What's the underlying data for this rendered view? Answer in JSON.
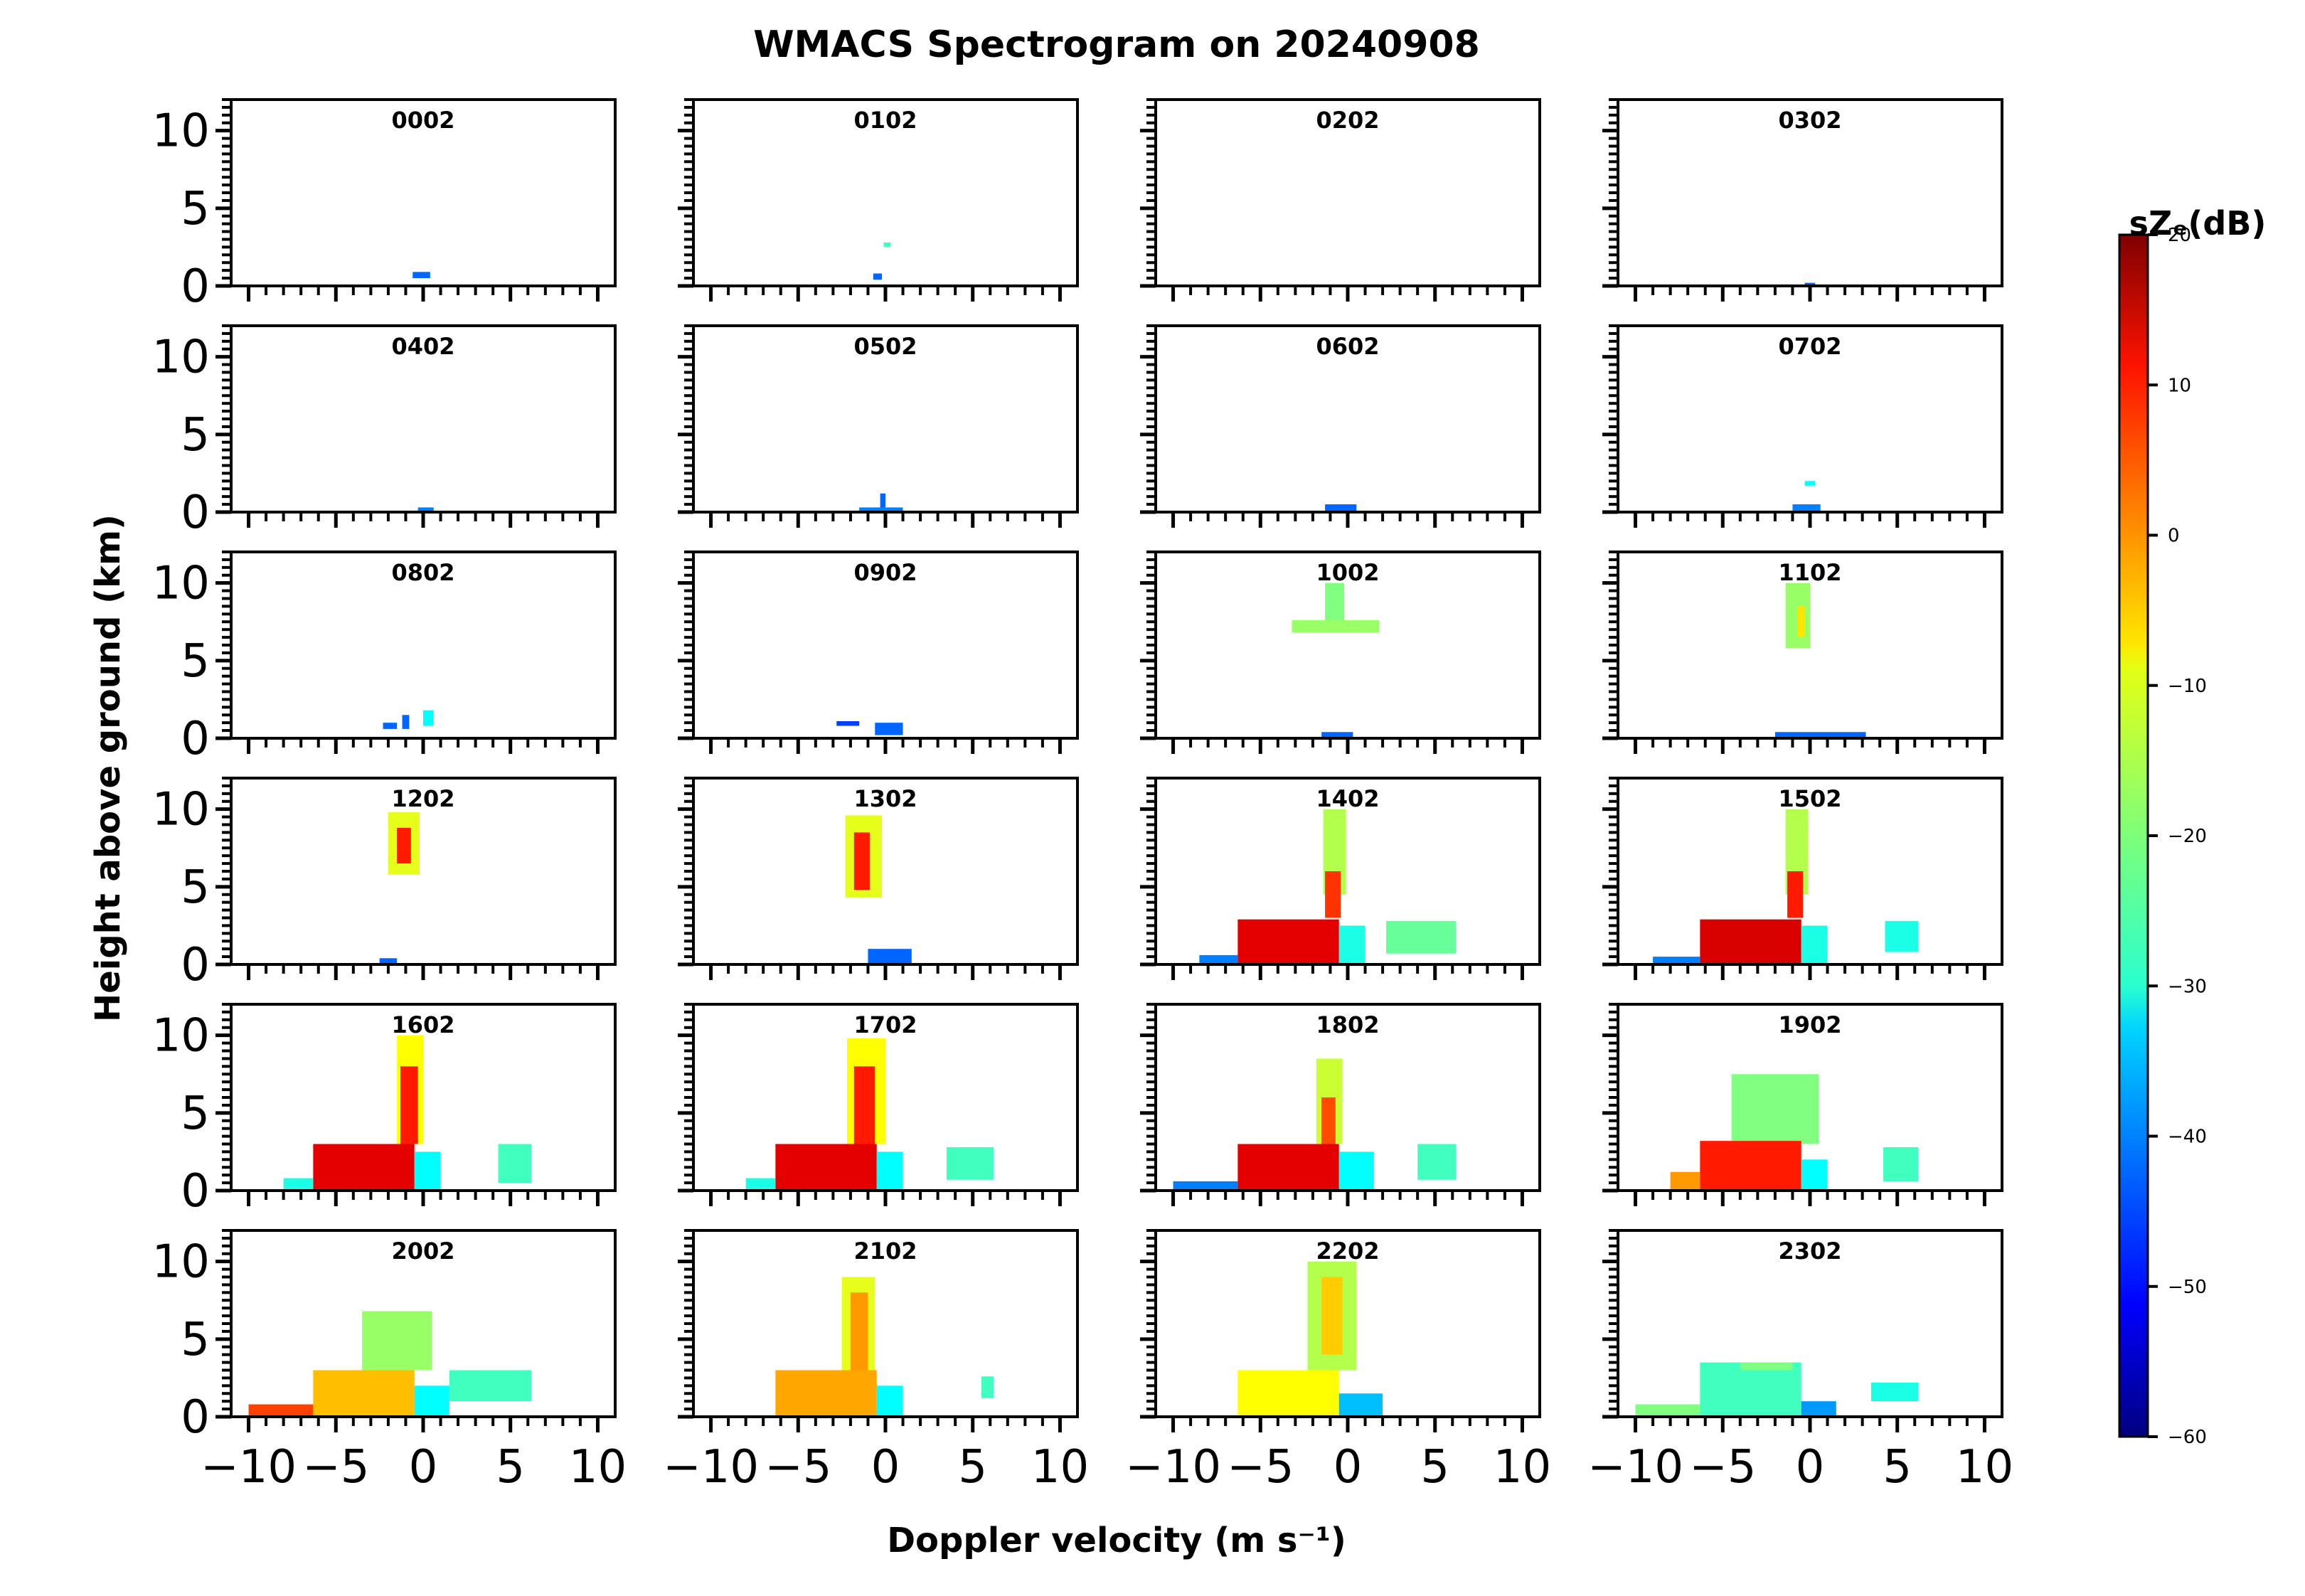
{
  "chart_data": {
    "type": "heatmap",
    "title": "WMACS Spectrogram on 20240908",
    "xlabel": "Doppler velocity (m s⁻¹)",
    "ylabel": "Height above ground (km)",
    "xlim": [
      -11,
      11
    ],
    "ylim": [
      0,
      12
    ],
    "xticks": [
      -10,
      -5,
      0,
      5,
      10
    ],
    "xtick_labels": [
      "−10",
      "−5",
      "0",
      "5",
      "10"
    ],
    "yticks": [
      0,
      5,
      10
    ],
    "ytick_labels": [
      "0",
      "5",
      "10"
    ],
    "grid": false,
    "colorbar": {
      "label": "sZₑ(dB)",
      "range": [
        -60,
        20
      ],
      "ticks": [
        20,
        10,
        0,
        -10,
        -20,
        -30,
        -40,
        -50,
        -60
      ],
      "tick_labels": [
        "20",
        "10",
        "0",
        "−10",
        "−20",
        "−30",
        "−40",
        "−50",
        "−60"
      ],
      "colormap": "jet"
    },
    "panels": [
      {
        "label": "0002",
        "blobs": [
          {
            "x": [
              -0.6,
              0.4
            ],
            "y": [
              0.5,
              0.9
            ],
            "db": -42
          }
        ]
      },
      {
        "label": "0102",
        "blobs": [
          {
            "x": [
              -0.7,
              -0.2
            ],
            "y": [
              0.4,
              0.8
            ],
            "db": -42
          },
          {
            "x": [
              -0.1,
              0.3
            ],
            "y": [
              2.5,
              2.8
            ],
            "db": -25
          }
        ]
      },
      {
        "label": "0202",
        "blobs": []
      },
      {
        "label": "0302",
        "blobs": [
          {
            "x": [
              -0.3,
              0.3
            ],
            "y": [
              0.0,
              0.2
            ],
            "db": -42
          }
        ]
      },
      {
        "label": "0402",
        "blobs": [
          {
            "x": [
              -0.3,
              0.6
            ],
            "y": [
              0.0,
              0.3
            ],
            "db": -40
          }
        ]
      },
      {
        "label": "0502",
        "blobs": [
          {
            "x": [
              -1.5,
              1.0
            ],
            "y": [
              0.0,
              0.3
            ],
            "db": -40
          },
          {
            "x": [
              -0.3,
              0.0
            ],
            "y": [
              0.3,
              1.2
            ],
            "db": -42
          }
        ]
      },
      {
        "label": "0602",
        "blobs": [
          {
            "x": [
              -1.3,
              0.5
            ],
            "y": [
              0.0,
              0.5
            ],
            "db": -42
          }
        ]
      },
      {
        "label": "0702",
        "blobs": [
          {
            "x": [
              -1.0,
              0.6
            ],
            "y": [
              0.0,
              0.5
            ],
            "db": -40
          },
          {
            "x": [
              -0.3,
              0.3
            ],
            "y": [
              1.7,
              2.0
            ],
            "db": -30
          }
        ]
      },
      {
        "label": "0802",
        "blobs": [
          {
            "x": [
              -2.3,
              -1.5
            ],
            "y": [
              0.6,
              1.0
            ],
            "db": -42
          },
          {
            "x": [
              -1.2,
              -0.8
            ],
            "y": [
              0.6,
              1.5
            ],
            "db": -42
          },
          {
            "x": [
              0.0,
              0.6
            ],
            "y": [
              0.8,
              1.8
            ],
            "db": -30
          }
        ]
      },
      {
        "label": "0902",
        "blobs": [
          {
            "x": [
              -2.8,
              -1.5
            ],
            "y": [
              0.8,
              1.1
            ],
            "db": -45
          },
          {
            "x": [
              -0.6,
              1.0
            ],
            "y": [
              0.2,
              1.0
            ],
            "db": -42
          }
        ]
      },
      {
        "label": "1002",
        "blobs": [
          {
            "x": [
              -1.3,
              -0.2
            ],
            "y": [
              7.5,
              10.0
            ],
            "db": -20
          },
          {
            "x": [
              -3.2,
              1.8
            ],
            "y": [
              6.8,
              7.6
            ],
            "db": -18
          },
          {
            "x": [
              -1.5,
              0.3
            ],
            "y": [
              0.0,
              0.4
            ],
            "db": -42
          }
        ]
      },
      {
        "label": "1102",
        "blobs": [
          {
            "x": [
              -1.4,
              0.0
            ],
            "y": [
              5.8,
              10.0
            ],
            "db": -18
          },
          {
            "x": [
              -0.7,
              -0.3
            ],
            "y": [
              6.5,
              8.5
            ],
            "db": -8
          },
          {
            "x": [
              -2.0,
              3.2
            ],
            "y": [
              0.0,
              0.4
            ],
            "db": -42
          }
        ]
      },
      {
        "label": "1202",
        "blobs": [
          {
            "x": [
              -2.0,
              -0.2
            ],
            "y": [
              5.8,
              9.8
            ],
            "db": -12
          },
          {
            "x": [
              -1.5,
              -0.7
            ],
            "y": [
              6.5,
              8.8
            ],
            "db": 8
          },
          {
            "x": [
              -2.5,
              -1.5
            ],
            "y": [
              0.0,
              0.4
            ],
            "db": -42
          }
        ]
      },
      {
        "label": "1302",
        "blobs": [
          {
            "x": [
              -2.3,
              -0.2
            ],
            "y": [
              4.3,
              9.6
            ],
            "db": -12
          },
          {
            "x": [
              -1.8,
              -0.9
            ],
            "y": [
              4.8,
              8.5
            ],
            "db": 8
          },
          {
            "x": [
              -1.0,
              1.5
            ],
            "y": [
              0.0,
              1.0
            ],
            "db": -42
          }
        ]
      },
      {
        "label": "1402",
        "blobs": [
          {
            "x": [
              -1.4,
              -0.1
            ],
            "y": [
              4.5,
              10.0
            ],
            "db": -16
          },
          {
            "x": [
              -1.3,
              -0.4
            ],
            "y": [
              3.0,
              6.0
            ],
            "db": 6
          },
          {
            "x": [
              -6.3,
              -0.5
            ],
            "y": [
              0.0,
              2.9
            ],
            "db": 12
          },
          {
            "x": [
              -0.5,
              1.0
            ],
            "y": [
              0.0,
              2.5
            ],
            "db": -28
          },
          {
            "x": [
              -8.5,
              -6.3
            ],
            "y": [
              0.0,
              0.6
            ],
            "db": -40
          },
          {
            "x": [
              2.2,
              6.2
            ],
            "y": [
              0.7,
              2.8
            ],
            "db": -22
          }
        ]
      },
      {
        "label": "1502",
        "blobs": [
          {
            "x": [
              -1.4,
              -0.1
            ],
            "y": [
              4.5,
              10.0
            ],
            "db": -16
          },
          {
            "x": [
              -1.3,
              -0.4
            ],
            "y": [
              3.0,
              6.0
            ],
            "db": 8
          },
          {
            "x": [
              -6.3,
              -0.5
            ],
            "y": [
              0.0,
              2.9
            ],
            "db": 13
          },
          {
            "x": [
              -0.5,
              1.0
            ],
            "y": [
              0.0,
              2.5
            ],
            "db": -28
          },
          {
            "x": [
              -9.0,
              -6.3
            ],
            "y": [
              0.0,
              0.5
            ],
            "db": -40
          },
          {
            "x": [
              4.3,
              6.2
            ],
            "y": [
              0.8,
              2.8
            ],
            "db": -28
          }
        ]
      },
      {
        "label": "1602",
        "blobs": [
          {
            "x": [
              -1.5,
              0.0
            ],
            "y": [
              3.0,
              10.0
            ],
            "db": -10
          },
          {
            "x": [
              -1.3,
              -0.3
            ],
            "y": [
              3.0,
              8.0
            ],
            "db": 8
          },
          {
            "x": [
              -6.3,
              -0.5
            ],
            "y": [
              0.0,
              3.0
            ],
            "db": 12
          },
          {
            "x": [
              -0.5,
              1.0
            ],
            "y": [
              0.0,
              2.5
            ],
            "db": -30
          },
          {
            "x": [
              -8.0,
              -6.3
            ],
            "y": [
              0.0,
              0.8
            ],
            "db": -28
          },
          {
            "x": [
              4.3,
              6.2
            ],
            "y": [
              0.5,
              3.0
            ],
            "db": -25
          }
        ]
      },
      {
        "label": "1702",
        "blobs": [
          {
            "x": [
              -2.2,
              0.0
            ],
            "y": [
              3.0,
              9.8
            ],
            "db": -10
          },
          {
            "x": [
              -1.8,
              -0.6
            ],
            "y": [
              3.0,
              8.0
            ],
            "db": 8
          },
          {
            "x": [
              -6.3,
              -0.5
            ],
            "y": [
              0.0,
              3.0
            ],
            "db": 12
          },
          {
            "x": [
              -0.5,
              1.0
            ],
            "y": [
              0.0,
              2.5
            ],
            "db": -30
          },
          {
            "x": [
              -8.0,
              -6.3
            ],
            "y": [
              0.0,
              0.8
            ],
            "db": -28
          },
          {
            "x": [
              3.5,
              6.2
            ],
            "y": [
              0.7,
              2.8
            ],
            "db": -25
          }
        ]
      },
      {
        "label": "1802",
        "blobs": [
          {
            "x": [
              -1.8,
              -0.3
            ],
            "y": [
              3.0,
              8.5
            ],
            "db": -14
          },
          {
            "x": [
              -1.5,
              -0.7
            ],
            "y": [
              3.0,
              6.0
            ],
            "db": 4
          },
          {
            "x": [
              -6.3,
              -0.5
            ],
            "y": [
              0.0,
              3.0
            ],
            "db": 12
          },
          {
            "x": [
              -0.5,
              1.5
            ],
            "y": [
              0.0,
              2.5
            ],
            "db": -30
          },
          {
            "x": [
              -10.0,
              -6.3
            ],
            "y": [
              0.0,
              0.6
            ],
            "db": -40
          },
          {
            "x": [
              4.0,
              6.2
            ],
            "y": [
              0.7,
              3.0
            ],
            "db": -25
          }
        ]
      },
      {
        "label": "1902",
        "blobs": [
          {
            "x": [
              -4.5,
              0.5
            ],
            "y": [
              3.0,
              7.5
            ],
            "db": -20
          },
          {
            "x": [
              -6.3,
              -0.5
            ],
            "y": [
              0.0,
              3.2
            ],
            "db": 8
          },
          {
            "x": [
              -8.0,
              -6.3
            ],
            "y": [
              0.0,
              1.2
            ],
            "db": -2
          },
          {
            "x": [
              -0.5,
              1.0
            ],
            "y": [
              0.0,
              2.0
            ],
            "db": -30
          },
          {
            "x": [
              4.2,
              6.2
            ],
            "y": [
              0.6,
              2.8
            ],
            "db": -25
          }
        ]
      },
      {
        "label": "2002",
        "blobs": [
          {
            "x": [
              -3.5,
              0.5
            ],
            "y": [
              3.0,
              6.8
            ],
            "db": -18
          },
          {
            "x": [
              -6.3,
              -0.5
            ],
            "y": [
              0.0,
              3.0
            ],
            "db": -5
          },
          {
            "x": [
              -10.0,
              -6.3
            ],
            "y": [
              0.0,
              0.8
            ],
            "db": 5
          },
          {
            "x": [
              -0.5,
              1.5
            ],
            "y": [
              0.0,
              2.0
            ],
            "db": -30
          },
          {
            "x": [
              1.5,
              6.2
            ],
            "y": [
              1.0,
              3.0
            ],
            "db": -25
          }
        ]
      },
      {
        "label": "2102",
        "blobs": [
          {
            "x": [
              -2.5,
              -0.6
            ],
            "y": [
              3.0,
              9.0
            ],
            "db": -12
          },
          {
            "x": [
              -2.0,
              -1.0
            ],
            "y": [
              3.0,
              8.0
            ],
            "db": -2
          },
          {
            "x": [
              -6.3,
              -0.5
            ],
            "y": [
              0.0,
              3.0
            ],
            "db": -3
          },
          {
            "x": [
              -0.5,
              1.0
            ],
            "y": [
              0.0,
              2.0
            ],
            "db": -30
          },
          {
            "x": [
              5.5,
              6.2
            ],
            "y": [
              1.2,
              2.6
            ],
            "db": -25
          }
        ]
      },
      {
        "label": "2202",
        "blobs": [
          {
            "x": [
              -2.3,
              0.5
            ],
            "y": [
              3.0,
              10.0
            ],
            "db": -16
          },
          {
            "x": [
              -1.5,
              -0.3
            ],
            "y": [
              4.0,
              9.0
            ],
            "db": -6
          },
          {
            "x": [
              -6.3,
              -0.5
            ],
            "y": [
              0.0,
              3.0
            ],
            "db": -10
          },
          {
            "x": [
              -0.5,
              2.0
            ],
            "y": [
              0.0,
              1.5
            ],
            "db": -35
          }
        ]
      },
      {
        "label": "2302",
        "blobs": [
          {
            "x": [
              -6.3,
              -0.5
            ],
            "y": [
              0.0,
              3.5
            ],
            "db": -25
          },
          {
            "x": [
              -4.0,
              -1.0
            ],
            "y": [
              3.0,
              3.5
            ],
            "db": -20
          },
          {
            "x": [
              -10.0,
              -6.3
            ],
            "y": [
              0.0,
              0.8
            ],
            "db": -20
          },
          {
            "x": [
              -0.5,
              1.5
            ],
            "y": [
              0.0,
              1.0
            ],
            "db": -38
          },
          {
            "x": [
              3.5,
              6.2
            ],
            "y": [
              1.0,
              2.2
            ],
            "db": -28
          }
        ]
      }
    ]
  }
}
